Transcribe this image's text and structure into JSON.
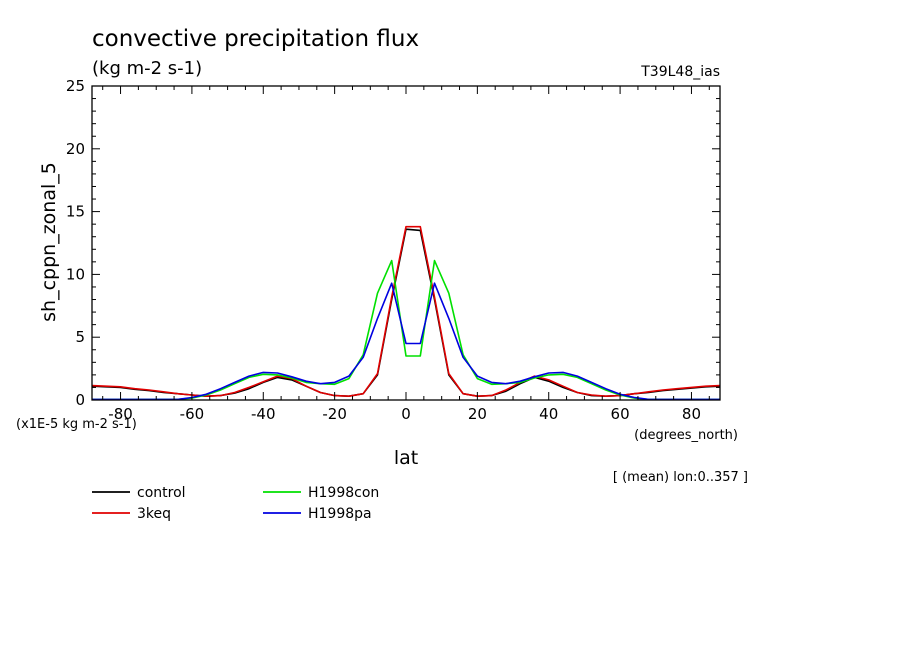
{
  "chart_data": {
    "type": "line",
    "title": "convective precipitation flux",
    "subtitle": "(kg m-2 s-1)",
    "run_label": "T39L48_ias",
    "ylabel": "sh_cppn_zonal_5",
    "xlabel": "lat",
    "x_units": "(degrees_north)",
    "y_scale_note": "(x1E-5 kg m-2 s-1)",
    "footnote": "[ (mean) lon:0..357 ]",
    "xlim": [
      -88,
      88
    ],
    "ylim": [
      0,
      25
    ],
    "x_ticks": [
      -80,
      -60,
      -40,
      -20,
      0,
      20,
      40,
      60,
      80
    ],
    "x_tick_labels": [
      "-80",
      "-60",
      "-40",
      "-20",
      "0",
      "20",
      "40",
      "60",
      "80"
    ],
    "y_ticks": [
      0,
      5,
      10,
      15,
      20,
      25
    ],
    "y_tick_labels": [
      "0",
      "5",
      "10",
      "15",
      "20",
      "25"
    ],
    "x": [
      -88,
      -84,
      -80,
      -76,
      -72,
      -68,
      -64,
      -60,
      -56,
      -52,
      -48,
      -44,
      -40,
      -36,
      -32,
      -28,
      -24,
      -20,
      -16,
      -12,
      -8,
      -4,
      0,
      4,
      8,
      12,
      16,
      20,
      24,
      28,
      32,
      36,
      40,
      44,
      48,
      52,
      56,
      60,
      64,
      68,
      72,
      76,
      80,
      84,
      88
    ],
    "series": [
      {
        "name": "control",
        "color": "#000000",
        "values": [
          1.1,
          1.05,
          1.0,
          0.85,
          0.75,
          0.6,
          0.5,
          0.4,
          0.3,
          0.35,
          0.55,
          0.9,
          1.4,
          1.8,
          1.6,
          1.1,
          0.6,
          0.35,
          0.3,
          0.5,
          2.0,
          8.0,
          13.6,
          13.5,
          8.0,
          2.0,
          0.5,
          0.3,
          0.35,
          0.7,
          1.3,
          1.8,
          1.5,
          1.0,
          0.6,
          0.35,
          0.3,
          0.35,
          0.5,
          0.6,
          0.75,
          0.85,
          0.95,
          1.05,
          1.1
        ]
      },
      {
        "name": "3keq",
        "color": "#e00000",
        "values": [
          1.15,
          1.1,
          1.05,
          0.9,
          0.8,
          0.65,
          0.5,
          0.4,
          0.3,
          0.35,
          0.6,
          1.0,
          1.45,
          1.9,
          1.7,
          1.1,
          0.6,
          0.35,
          0.3,
          0.5,
          2.1,
          8.2,
          13.8,
          13.8,
          8.2,
          2.1,
          0.5,
          0.3,
          0.35,
          0.8,
          1.4,
          1.9,
          1.6,
          1.1,
          0.6,
          0.4,
          0.3,
          0.35,
          0.5,
          0.65,
          0.8,
          0.9,
          1.0,
          1.1,
          1.15
        ]
      },
      {
        "name": "H1998con",
        "color": "#00e000",
        "values": [
          0.05,
          0.05,
          0.05,
          0.05,
          0.05,
          0.05,
          0.05,
          0.15,
          0.4,
          0.8,
          1.3,
          1.8,
          2.05,
          2.0,
          1.75,
          1.4,
          1.3,
          1.25,
          1.7,
          3.6,
          8.5,
          11.1,
          3.5,
          3.5,
          11.1,
          8.5,
          3.6,
          1.7,
          1.25,
          1.3,
          1.4,
          1.75,
          2.0,
          2.05,
          1.8,
          1.3,
          0.8,
          0.4,
          0.15,
          0.05,
          0.05,
          0.05,
          0.05,
          0.05,
          0.05
        ]
      },
      {
        "name": "H1998pa",
        "color": "#0000e0",
        "values": [
          0.05,
          0.05,
          0.05,
          0.05,
          0.05,
          0.05,
          0.05,
          0.2,
          0.45,
          0.9,
          1.4,
          1.9,
          2.2,
          2.15,
          1.85,
          1.5,
          1.3,
          1.4,
          1.9,
          3.4,
          6.5,
          9.3,
          4.5,
          4.5,
          9.3,
          6.5,
          3.4,
          1.9,
          1.4,
          1.3,
          1.5,
          1.85,
          2.15,
          2.2,
          1.9,
          1.4,
          0.9,
          0.45,
          0.2,
          0.05,
          0.05,
          0.05,
          0.05,
          0.05,
          0.05
        ]
      }
    ]
  }
}
